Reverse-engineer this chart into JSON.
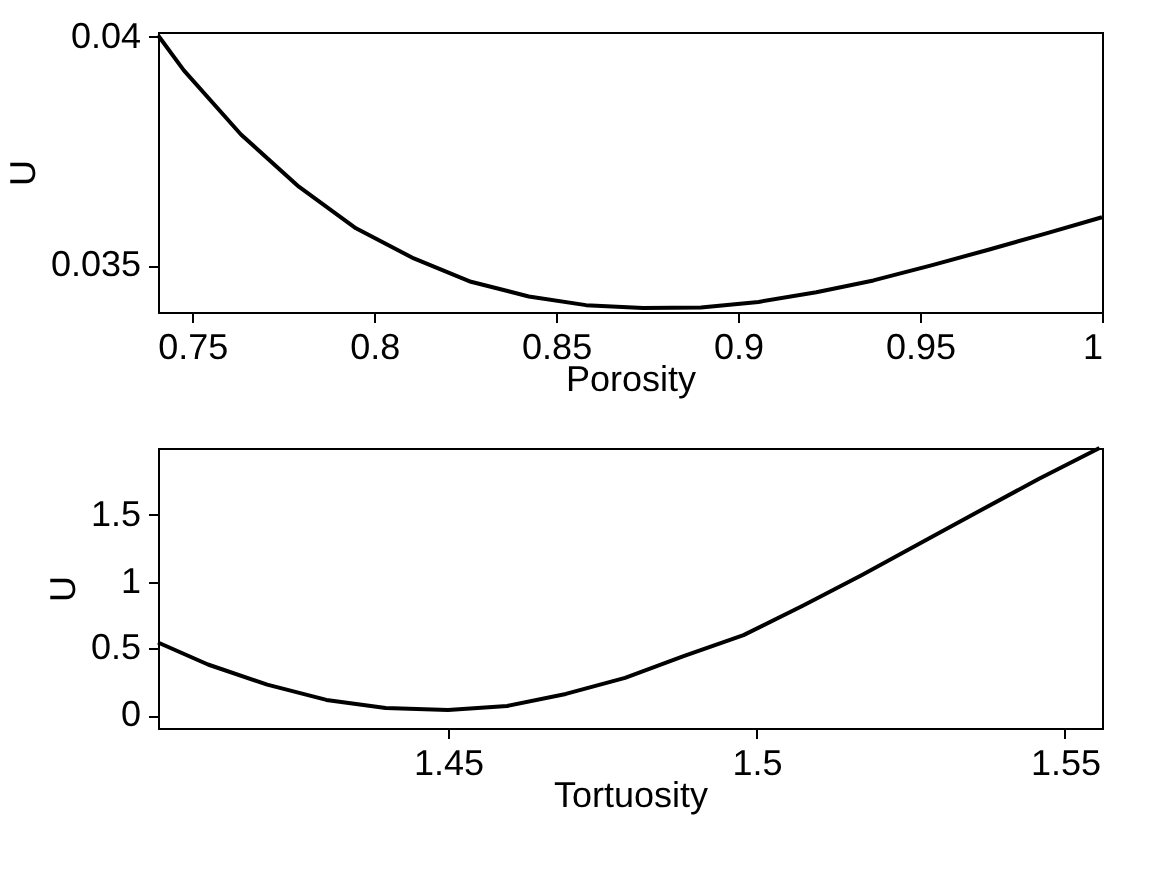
{
  "chart_data": [
    {
      "type": "line",
      "xlabel": "Porosity",
      "ylabel": "U",
      "xlim": [
        0.7406,
        1
      ],
      "ylim": [
        0.03398,
        0.0401
      ],
      "xticks": [
        0.75,
        0.8,
        0.85,
        0.9,
        0.95,
        1
      ],
      "yticks": [
        0.035,
        0.04
      ],
      "color": "#000000",
      "x": [
        0.7406,
        0.7477,
        0.7634,
        0.7793,
        0.795,
        0.8109,
        0.8266,
        0.8425,
        0.8582,
        0.8739,
        0.8898,
        0.9056,
        0.9215,
        0.9372,
        0.9531,
        0.9688,
        0.9847,
        1.0
      ],
      "values": [
        0.04003,
        0.03926,
        0.03786,
        0.03672,
        0.03581,
        0.03515,
        0.03464,
        0.03432,
        0.03413,
        0.03407,
        0.03408,
        0.0342,
        0.03441,
        0.03467,
        0.035,
        0.03534,
        0.0357,
        0.03605
      ]
    },
    {
      "type": "line",
      "xlabel": "Tortuosity",
      "ylabel": "U",
      "xlim": [
        1.403,
        1.556
      ],
      "ylim": [
        -0.095,
        2
      ],
      "xticks": [
        1.45,
        1.5,
        1.55
      ],
      "yticks": [
        0,
        0.5,
        1,
        1.5
      ],
      "color": "#000000",
      "x": [
        1.403,
        1.4111,
        1.4207,
        1.4303,
        1.4399,
        1.45,
        1.4596,
        1.4691,
        1.4787,
        1.4883,
        1.4979,
        1.5075,
        1.5171,
        1.5266,
        1.5362,
        1.5458,
        1.5556
      ],
      "values": [
        0.545,
        0.38,
        0.23,
        0.115,
        0.055,
        0.04,
        0.07,
        0.16,
        0.28,
        0.445,
        0.6,
        0.82,
        1.05,
        1.29,
        1.53,
        1.77,
        2.0
      ]
    }
  ]
}
